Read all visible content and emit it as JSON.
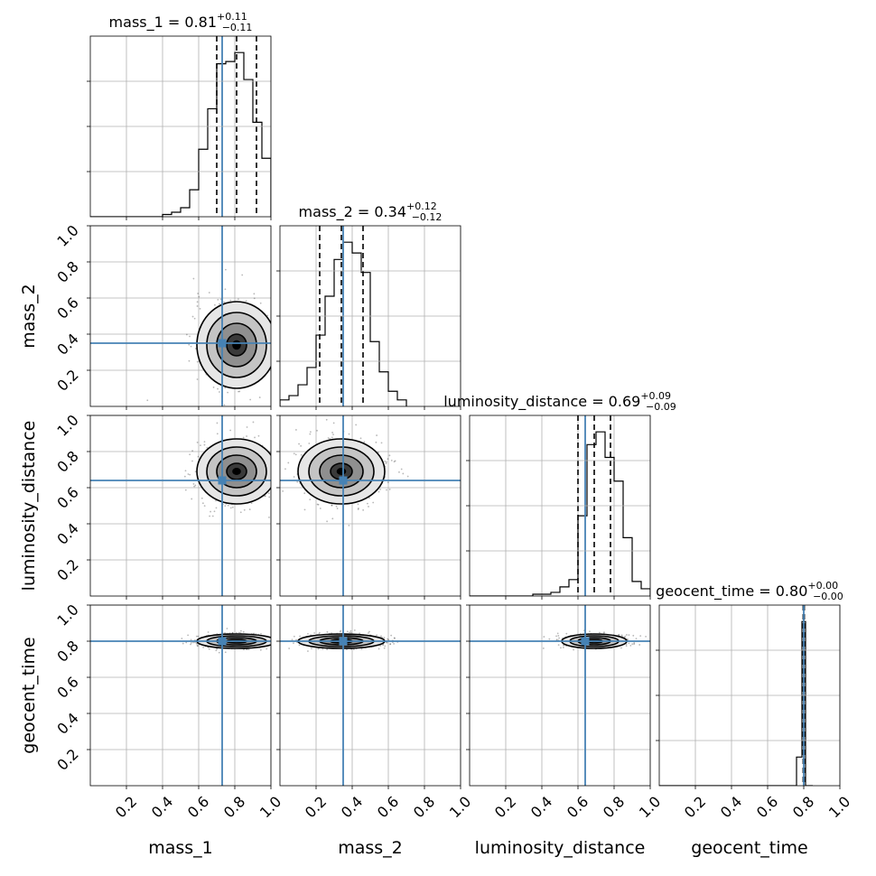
{
  "chart_data": {
    "type": "corner",
    "parameters": [
      "mass_1",
      "mass_2",
      "luminosity_distance",
      "geocent_time"
    ],
    "axis_labels": [
      "mass_1",
      "mass_2",
      "luminosity_distance",
      "geocent_time"
    ],
    "range": [
      0,
      1
    ],
    "ticks": [
      0.2,
      0.4,
      0.6,
      0.8,
      1.0
    ],
    "tick_labels": [
      "0.2",
      "0.4",
      "0.6",
      "0.8",
      "1.0"
    ],
    "grid": true,
    "truth_color": "#4682b4",
    "truths": [
      0.73,
      0.35,
      0.64,
      0.8
    ],
    "titles": [
      {
        "name": "mass_1",
        "value": "0.81",
        "plus": "+0.11",
        "minus": "−0.11"
      },
      {
        "name": "mass_2",
        "value": "0.34",
        "plus": "+0.12",
        "minus": "−0.12"
      },
      {
        "name": "luminosity_distance",
        "value": "0.69",
        "plus": "+0.09",
        "minus": "−0.09"
      },
      {
        "name": "geocent_time",
        "value": "0.80",
        "plus": "+0.00",
        "minus": "−0.00"
      }
    ],
    "quantiles": [
      [
        0.7,
        0.81,
        0.92
      ],
      [
        0.22,
        0.34,
        0.46
      ],
      [
        0.6,
        0.69,
        0.78
      ],
      [
        0.797,
        0.8,
        0.803
      ]
    ],
    "histograms": [
      {
        "edges": [
          0.4,
          0.45,
          0.5,
          0.55,
          0.6,
          0.65,
          0.7,
          0.75,
          0.8,
          0.85,
          0.9,
          0.95,
          1.0
        ],
        "counts": [
          1,
          2,
          4,
          12,
          30,
          48,
          68,
          69,
          73,
          61,
          42,
          26
        ]
      },
      {
        "edges": [
          0.0,
          0.05,
          0.1,
          0.15,
          0.2,
          0.25,
          0.3,
          0.35,
          0.4,
          0.45,
          0.5,
          0.55,
          0.6,
          0.65,
          0.7
        ],
        "counts": [
          3,
          5,
          10,
          18,
          33,
          51,
          68,
          76,
          71,
          62,
          30,
          16,
          7,
          3
        ]
      },
      {
        "edges": [
          0.35,
          0.4,
          0.45,
          0.5,
          0.55,
          0.6,
          0.65,
          0.7,
          0.75,
          0.8,
          0.85,
          0.9,
          0.95,
          1.0
        ],
        "counts": [
          1,
          1,
          2,
          5,
          9,
          44,
          83,
          90,
          76,
          63,
          32,
          8,
          4
        ]
      },
      {
        "edges": [
          0.76,
          0.79,
          0.81,
          0.85
        ],
        "counts": [
          15,
          86,
          0
        ]
      }
    ],
    "contours": [
      {
        "row": 1,
        "col": 0,
        "cx": 0.81,
        "cy": 0.34,
        "sx": 0.11,
        "sy": 0.12
      },
      {
        "row": 2,
        "col": 0,
        "cx": 0.81,
        "cy": 0.69,
        "sx": 0.11,
        "sy": 0.09
      },
      {
        "row": 2,
        "col": 1,
        "cx": 0.34,
        "cy": 0.69,
        "sx": 0.12,
        "sy": 0.09
      },
      {
        "row": 3,
        "col": 0,
        "cx": 0.81,
        "cy": 0.8,
        "sx": 0.11,
        "sy": 0.02
      },
      {
        "row": 3,
        "col": 1,
        "cx": 0.34,
        "cy": 0.8,
        "sx": 0.12,
        "sy": 0.02
      },
      {
        "row": 3,
        "col": 2,
        "cx": 0.69,
        "cy": 0.8,
        "sx": 0.09,
        "sy": 0.02
      }
    ]
  }
}
